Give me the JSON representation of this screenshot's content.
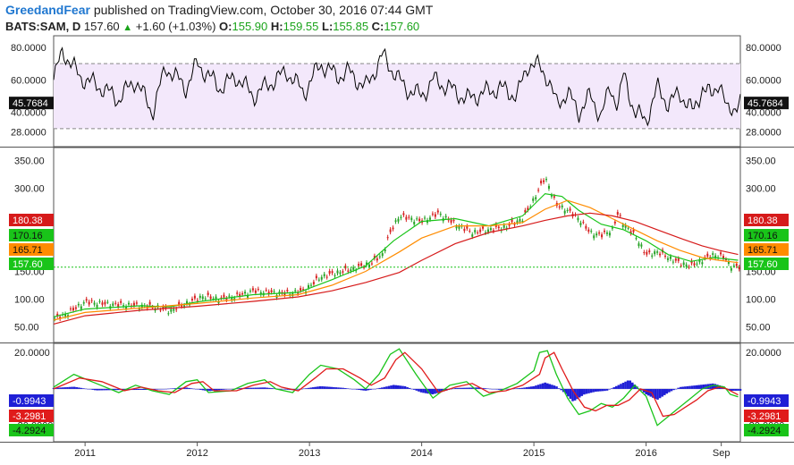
{
  "header": {
    "user": "GreedandFear",
    "published_text": "published on TradingView.com, October 30, 2016 07:44 GMT",
    "symbol": "BATS:SAM, D",
    "price": "157.60",
    "up_icon": "triangle-up-icon",
    "change": "+1.60 (+1.03%)",
    "o_label": "O:",
    "o_value": "155.90",
    "h_label": "H:",
    "h_value": "159.55",
    "l_label": "L:",
    "l_value": "155.85",
    "c_label": "C:",
    "c_value": "157.60"
  },
  "colors": {
    "rsi_line": "#000000",
    "rsi_band": "#f3e8fb",
    "price_line": "#19c419",
    "ma_green": "#19c419",
    "ma_orange": "#ff8c00",
    "ma_red": "#d61a1a",
    "macd_hist": "#1f1fd6",
    "macd_line": "#19c419",
    "signal_line": "#e01b1b"
  },
  "chart_data": [
    {
      "type": "line",
      "title": "RSI",
      "ylim": [
        20,
        86
      ],
      "y_ticks": [
        "80.0000",
        "60.0000",
        "40.0000",
        "28.0000"
      ],
      "y_tick_values": [
        80,
        60,
        40,
        28
      ],
      "band": [
        30,
        70
      ],
      "last_value_label": "45.7684",
      "last_value": 45.7684,
      "series": [
        {
          "name": "RSI",
          "x": [
            2010.72,
            2010.8,
            2010.95,
            2011.15,
            2011.3,
            2011.45,
            2011.6,
            2011.72,
            2011.9,
            2012.0,
            2012.2,
            2012.35,
            2012.5,
            2012.65,
            2012.8,
            2012.95,
            2013.1,
            2013.25,
            2013.35,
            2013.5,
            2013.65,
            2013.72,
            2013.85,
            2014.0,
            2014.1,
            2014.25,
            2014.4,
            2014.55,
            2014.7,
            2014.85,
            2014.95,
            2015.05,
            2015.12,
            2015.2,
            2015.3,
            2015.4,
            2015.5,
            2015.6,
            2015.68,
            2015.75,
            2015.8,
            2015.9,
            2016.0,
            2016.1,
            2016.2,
            2016.3,
            2016.42,
            2016.5,
            2016.58,
            2016.65,
            2016.72,
            2016.75,
            2016.82
          ],
          "values": [
            60,
            78,
            62,
            55,
            48,
            60,
            40,
            68,
            55,
            70,
            55,
            62,
            50,
            58,
            65,
            52,
            70,
            62,
            65,
            55,
            75,
            68,
            55,
            50,
            60,
            55,
            48,
            52,
            55,
            50,
            70,
            68,
            62,
            45,
            52,
            40,
            50,
            38,
            55,
            45,
            63,
            40,
            35,
            55,
            45,
            52,
            40,
            55,
            50,
            60,
            40,
            42,
            45.77
          ]
        }
      ]
    },
    {
      "type": "line",
      "title": "BATS:SAM, D",
      "ylim": [
        25,
        370
      ],
      "y_ticks": [
        "350.00",
        "300.00",
        "150.00",
        "100.00",
        "50.00"
      ],
      "y_tick_values": [
        350,
        300,
        150,
        100,
        50
      ],
      "price_labels": [
        "180.38",
        "170.16",
        "165.71",
        "157.60"
      ],
      "price_label_values": [
        180.38,
        170.16,
        165.71,
        157.6
      ],
      "series": [
        {
          "name": "Price",
          "x": [
            2010.72,
            2010.85,
            2011.0,
            2011.15,
            2011.3,
            2011.5,
            2011.65,
            2011.75,
            2011.9,
            2012.05,
            2012.2,
            2012.35,
            2012.5,
            2012.65,
            2012.8,
            2012.95,
            2013.1,
            2013.25,
            2013.4,
            2013.55,
            2013.65,
            2013.72,
            2013.8,
            2014.0,
            2014.15,
            2014.3,
            2014.45,
            2014.6,
            2014.75,
            2014.9,
            2015.0,
            2015.05,
            2015.1,
            2015.2,
            2015.3,
            2015.4,
            2015.5,
            2015.6,
            2015.7,
            2015.75,
            2015.8,
            2015.9,
            2016.0,
            2016.1,
            2016.2,
            2016.3,
            2016.4,
            2016.5,
            2016.6,
            2016.7,
            2016.75,
            2016.82
          ],
          "values": [
            63,
            75,
            95,
            92,
            90,
            88,
            85,
            78,
            92,
            105,
            100,
            105,
            115,
            112,
            110,
            115,
            140,
            148,
            155,
            165,
            180,
            220,
            250,
            240,
            255,
            235,
            220,
            225,
            230,
            245,
            280,
            300,
            320,
            270,
            260,
            245,
            220,
            215,
            225,
            255,
            235,
            215,
            180,
            185,
            175,
            165,
            160,
            170,
            180,
            175,
            160,
            157.6
          ]
        },
        {
          "name": "MA green",
          "x": [
            2010.72,
            2011.0,
            2011.5,
            2011.75,
            2012.0,
            2012.5,
            2012.9,
            2013.2,
            2013.5,
            2013.75,
            2014.0,
            2014.3,
            2014.6,
            2014.9,
            2015.1,
            2015.25,
            2015.4,
            2015.6,
            2015.8,
            2016.0,
            2016.2,
            2016.4,
            2016.6,
            2016.82
          ],
          "values": [
            68,
            82,
            88,
            86,
            95,
            108,
            112,
            135,
            160,
            205,
            240,
            245,
            232,
            250,
            290,
            285,
            260,
            235,
            225,
            205,
            180,
            168,
            175,
            170.16
          ]
        },
        {
          "name": "MA orange",
          "x": [
            2010.72,
            2011.0,
            2011.5,
            2012.0,
            2012.5,
            2012.9,
            2013.2,
            2013.5,
            2013.8,
            2014.0,
            2014.3,
            2014.6,
            2014.9,
            2015.1,
            2015.3,
            2015.5,
            2015.7,
            2015.9,
            2016.1,
            2016.3,
            2016.5,
            2016.65,
            2016.82
          ],
          "values": [
            62,
            76,
            84,
            92,
            102,
            108,
            125,
            150,
            185,
            210,
            232,
            232,
            238,
            262,
            278,
            265,
            245,
            225,
            205,
            188,
            175,
            170,
            165.71
          ]
        },
        {
          "name": "MA red",
          "x": [
            2010.72,
            2011.0,
            2011.5,
            2012.0,
            2012.5,
            2012.9,
            2013.2,
            2013.5,
            2013.8,
            2014.0,
            2014.3,
            2014.6,
            2014.9,
            2015.1,
            2015.3,
            2015.5,
            2015.7,
            2015.9,
            2016.1,
            2016.3,
            2016.5,
            2016.65,
            2016.82
          ],
          "values": [
            55,
            70,
            80,
            87,
            96,
            104,
            115,
            130,
            148,
            170,
            200,
            220,
            232,
            242,
            250,
            255,
            250,
            240,
            225,
            210,
            196,
            188,
            180.38
          ]
        }
      ]
    },
    {
      "type": "line",
      "title": "MACD",
      "ylim": [
        -28,
        24
      ],
      "y_ticks": [
        "20.0000",
        "-20.0000"
      ],
      "y_tick_values": [
        20,
        -20
      ],
      "value_labels": [
        "-0.9943",
        "-3.2981",
        "-4.2924"
      ],
      "value_label_values": [
        -0.9943,
        -3.2981,
        -4.2924
      ],
      "series": [
        {
          "name": "MACD",
          "x": [
            2010.72,
            2010.9,
            2011.1,
            2011.3,
            2011.45,
            2011.6,
            2011.75,
            2011.9,
            2012.0,
            2012.1,
            2012.3,
            2012.45,
            2012.6,
            2012.7,
            2012.85,
            2013.0,
            2013.1,
            2013.25,
            2013.4,
            2013.5,
            2013.62,
            2013.72,
            2013.8,
            2013.95,
            2014.1,
            2014.25,
            2014.4,
            2014.55,
            2014.7,
            2014.85,
            2015.0,
            2015.05,
            2015.12,
            2015.2,
            2015.3,
            2015.4,
            2015.5,
            2015.6,
            2015.7,
            2015.8,
            2015.9,
            2016.0,
            2016.1,
            2016.2,
            2016.3,
            2016.4,
            2016.5,
            2016.6,
            2016.7,
            2016.75,
            2016.82
          ],
          "values": [
            1,
            8,
            3,
            -2,
            2,
            -1,
            -3,
            4,
            5,
            -2,
            -1,
            3,
            5,
            0,
            -2,
            8,
            13,
            11,
            5,
            0,
            8,
            19,
            22,
            8,
            -5,
            2,
            4,
            -4,
            -1,
            3,
            10,
            20,
            21,
            8,
            -5,
            -14,
            -12,
            -8,
            -10,
            -5,
            2,
            -4,
            -20,
            -15,
            -10,
            -5,
            0,
            2,
            1,
            -3,
            -4.29
          ]
        },
        {
          "name": "Signal",
          "x": [
            2010.72,
            2010.95,
            2011.15,
            2011.35,
            2011.5,
            2011.65,
            2011.8,
            2011.95,
            2012.05,
            2012.15,
            2012.35,
            2012.5,
            2012.65,
            2012.75,
            2012.9,
            2013.05,
            2013.15,
            2013.3,
            2013.45,
            2013.55,
            2013.67,
            2013.77,
            2013.85,
            2014.0,
            2014.15,
            2014.3,
            2014.45,
            2014.6,
            2014.75,
            2014.9,
            2015.05,
            2015.1,
            2015.18,
            2015.25,
            2015.35,
            2015.45,
            2015.55,
            2015.65,
            2015.75,
            2015.85,
            2015.95,
            2016.05,
            2016.15,
            2016.25,
            2016.35,
            2016.45,
            2016.55,
            2016.65,
            2016.72,
            2016.82
          ],
          "values": [
            0,
            6,
            4,
            -1,
            1,
            -1,
            -2,
            3,
            4,
            -1,
            -1,
            2,
            4,
            1,
            -1,
            6,
            11,
            11,
            6,
            2,
            6,
            16,
            20,
            11,
            -2,
            1,
            3,
            -2,
            -1,
            2,
            8,
            17,
            20,
            11,
            -1,
            -10,
            -12,
            -9,
            -9,
            -6,
            0,
            -2,
            -15,
            -14,
            -10,
            -6,
            -1,
            1,
            0,
            -3.3
          ]
        },
        {
          "name": "Histogram",
          "x": [
            2010.72,
            2010.9,
            2011.1,
            2011.3,
            2011.6,
            2011.9,
            2012.1,
            2012.4,
            2012.6,
            2012.85,
            2013.1,
            2013.3,
            2013.5,
            2013.65,
            2013.75,
            2013.85,
            2014.0,
            2014.1,
            2014.3,
            2014.5,
            2014.7,
            2014.9,
            2015.0,
            2015.1,
            2015.2,
            2015.28,
            2015.35,
            2015.45,
            2015.55,
            2015.65,
            2015.75,
            2015.85,
            2016.0,
            2016.1,
            2016.2,
            2016.3,
            2016.45,
            2016.6,
            2016.68,
            2016.75,
            2016.82
          ],
          "values": [
            0.5,
            1.2,
            -0.8,
            -0.6,
            -0.5,
            0.8,
            -1.2,
            0.5,
            0.8,
            -0.7,
            1.5,
            0.6,
            -1.0,
            0.8,
            2.2,
            1.5,
            -2.0,
            -3.0,
            0.5,
            0.8,
            -0.5,
            0.6,
            1.5,
            3.5,
            1.5,
            -2.5,
            -7,
            -3,
            -1.5,
            -1,
            2,
            5,
            -3,
            -6,
            -2,
            1,
            2,
            3,
            1.5,
            -1,
            -0.99
          ]
        }
      ]
    }
  ],
  "x_axis": {
    "labels": [
      "2011",
      "2012",
      "2013",
      "2014",
      "2015",
      "2016",
      "Sep"
    ],
    "values": [
      2011.0,
      2012.0,
      2013.0,
      2014.0,
      2015.0,
      2016.0,
      2016.67
    ]
  }
}
